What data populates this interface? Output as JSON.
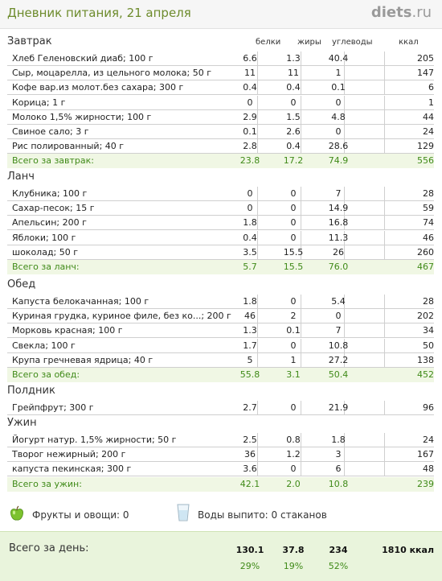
{
  "header": {
    "title": "Дневник питания, 21 апреля",
    "brand": "diets",
    "brand_tld": ".ru"
  },
  "columns": {
    "protein": "белки",
    "fat": "жиры",
    "carbs": "углеводы",
    "kcal": "ккал"
  },
  "sections": [
    {
      "title": "Завтрак",
      "rows": [
        {
          "name": "Хлеб Геленовский диаб; 100 г",
          "protein": "6.6",
          "fat": "1.3",
          "carbs": "40.4",
          "kcal": "205"
        },
        {
          "name": "Сыр, моцарелла, из цельного молока; 50 г",
          "protein": "11",
          "fat": "11",
          "carbs": "1",
          "kcal": "147"
        },
        {
          "name": "Кофе вар.из молот.без сахара; 300 г",
          "protein": "0.4",
          "fat": "0.4",
          "carbs": "0.1",
          "kcal": "6"
        },
        {
          "name": "Корица; 1 г",
          "protein": "0",
          "fat": "0",
          "carbs": "0",
          "kcal": "1"
        },
        {
          "name": "Молоко 1,5% жирности; 100 г",
          "protein": "2.9",
          "fat": "1.5",
          "carbs": "4.8",
          "kcal": "44"
        },
        {
          "name": "Свиное сало; 3 г",
          "protein": "0.1",
          "fat": "2.6",
          "carbs": "0",
          "kcal": "24"
        },
        {
          "name": "Рис полированный; 40 г",
          "protein": "2.8",
          "fat": "0.4",
          "carbs": "28.6",
          "kcal": "129"
        }
      ],
      "total": {
        "label": "Всего за завтрак:",
        "protein": "23.8",
        "fat": "17.2",
        "carbs": "74.9",
        "kcal": "556"
      }
    },
    {
      "title": "Ланч",
      "rows": [
        {
          "name": "Клубника; 100 г",
          "protein": "0",
          "fat": "0",
          "carbs": "7",
          "kcal": "28"
        },
        {
          "name": "Сахар-песок; 15 г",
          "protein": "0",
          "fat": "0",
          "carbs": "14.9",
          "kcal": "59"
        },
        {
          "name": "Апельсин; 200 г",
          "protein": "1.8",
          "fat": "0",
          "carbs": "16.8",
          "kcal": "74"
        },
        {
          "name": "Яблоки; 100 г",
          "protein": "0.4",
          "fat": "0",
          "carbs": "11.3",
          "kcal": "46"
        },
        {
          "name": "шоколад; 50 г",
          "protein": "3.5",
          "fat": "15.5",
          "carbs": "26",
          "kcal": "260"
        }
      ],
      "total": {
        "label": "Всего за ланч:",
        "protein": "5.7",
        "fat": "15.5",
        "carbs": "76.0",
        "kcal": "467"
      }
    },
    {
      "title": "Обед",
      "rows": [
        {
          "name": "Капуста белокачанная; 100 г",
          "protein": "1.8",
          "fat": "0",
          "carbs": "5.4",
          "kcal": "28"
        },
        {
          "name": "Куриная грудка, куриное филе, без ко...; 200 г",
          "protein": "46",
          "fat": "2",
          "carbs": "0",
          "kcal": "202"
        },
        {
          "name": "Морковь красная; 100 г",
          "protein": "1.3",
          "fat": "0.1",
          "carbs": "7",
          "kcal": "34"
        },
        {
          "name": "Свекла; 100 г",
          "protein": "1.7",
          "fat": "0",
          "carbs": "10.8",
          "kcal": "50"
        },
        {
          "name": "Крупа гречневая ядрица; 40 г",
          "protein": "5",
          "fat": "1",
          "carbs": "27.2",
          "kcal": "138"
        }
      ],
      "total": {
        "label": "Всего за обед:",
        "protein": "55.8",
        "fat": "3.1",
        "carbs": "50.4",
        "kcal": "452"
      }
    },
    {
      "title": "Полдник",
      "rows": [
        {
          "name": "Грейпфрут; 300 г",
          "protein": "2.7",
          "fat": "0",
          "carbs": "21.9",
          "kcal": "96"
        }
      ],
      "total": null
    },
    {
      "title": "Ужин",
      "rows": [
        {
          "name": "Йогурт натур. 1,5% жирности; 50 г",
          "protein": "2.5",
          "fat": "0.8",
          "carbs": "1.8",
          "kcal": "24"
        },
        {
          "name": "Творог нежирный; 200 г",
          "protein": "36",
          "fat": "1.2",
          "carbs": "3",
          "kcal": "167"
        },
        {
          "name": "капуста пекинская; 300 г",
          "protein": "3.6",
          "fat": "0",
          "carbs": "6",
          "kcal": "48"
        }
      ],
      "total": {
        "label": "Всего за ужин:",
        "protein": "42.1",
        "fat": "2.0",
        "carbs": "10.8",
        "kcal": "239"
      }
    }
  ],
  "extras": {
    "fruits_label": "Фрукты и овощи: 0",
    "water_label": "Воды выпито: 0 стаканов",
    "apple_icon": "apple-icon",
    "glass_icon": "water-glass-icon"
  },
  "day_total": {
    "label": "Всего за день:",
    "protein": "130.1",
    "fat": "37.8",
    "carbs": "234",
    "kcal": "1810 ккал",
    "protein_pct": "29%",
    "fat_pct": "19%",
    "carbs_pct": "52%"
  }
}
